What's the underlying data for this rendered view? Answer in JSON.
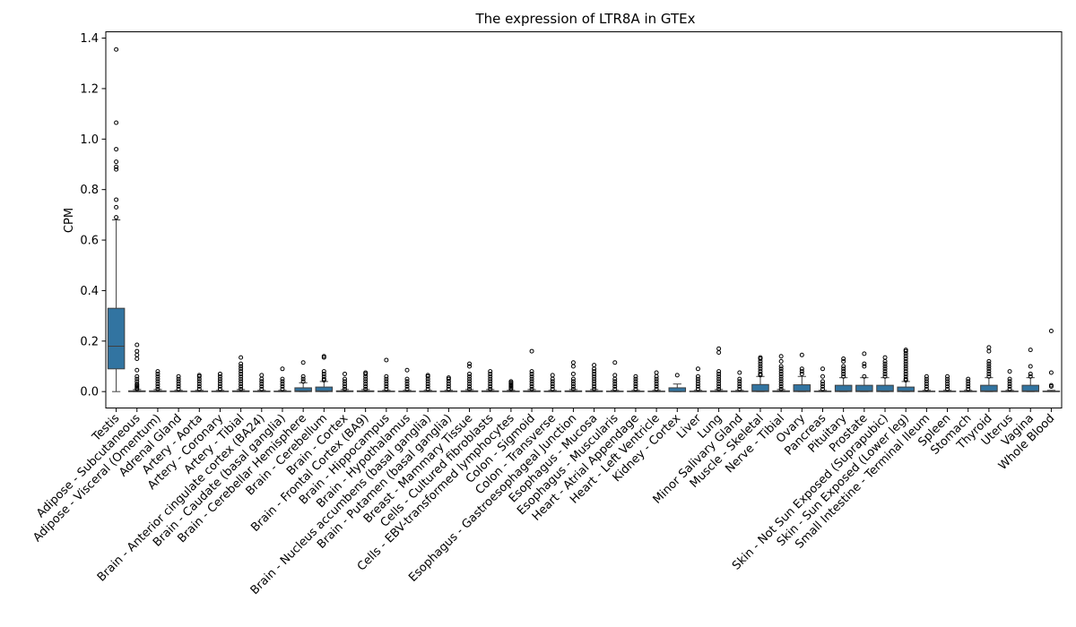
{
  "chart_data": {
    "type": "box",
    "title": "The expression of LTR8A in GTEx",
    "xlabel": "",
    "ylabel": "CPM",
    "ylim": [
      -0.065,
      1.425
    ],
    "yticks": [
      0.0,
      0.2,
      0.4,
      0.6,
      0.8,
      1.0,
      1.2,
      1.4
    ],
    "ytick_labels": [
      "0.0",
      "0.2",
      "0.4",
      "0.6",
      "0.8",
      "1.0",
      "1.2",
      "1.4"
    ],
    "grid": false,
    "legend": "none",
    "box_color": "#3274a1",
    "categories": [
      "Testis",
      "Adipose - Subcutaneous",
      "Adipose - Visceral (Omentum)",
      "Adrenal Gland",
      "Artery - Aorta",
      "Artery - Coronary",
      "Artery - Tibial",
      "Brain - Anterior cingulate cortex (BA24)",
      "Brain - Caudate (basal ganglia)",
      "Brain - Cerebellar Hemisphere",
      "Brain - Cerebellum",
      "Brain - Cortex",
      "Brain - Frontal Cortex (BA9)",
      "Brain - Hippocampus",
      "Brain - Hypothalamus",
      "Brain - Nucleus accumbens (basal ganglia)",
      "Brain - Putamen (basal ganglia)",
      "Breast - Mammary Tissue",
      "Cells - Cultured fibroblasts",
      "Cells - EBV-transformed lymphocytes",
      "Colon - Sigmoid",
      "Colon - Transverse",
      "Esophagus - Gastroesophageal Junction",
      "Esophagus - Mucosa",
      "Esophagus - Muscularis",
      "Heart - Atrial Appendage",
      "Heart - Left Ventricle",
      "Kidney - Cortex",
      "Liver",
      "Lung",
      "Minor Salivary Gland",
      "Muscle - Skeletal",
      "Nerve - Tibial",
      "Ovary",
      "Pancreas",
      "Pituitary",
      "Prostate",
      "Skin - Not Sun Exposed (Suprapubic)",
      "Skin - Sun Exposed (Lower leg)",
      "Small Intestine - Terminal Ileum",
      "Spleen",
      "Stomach",
      "Thyroid",
      "Uterus",
      "Vagina",
      "Whole Blood"
    ],
    "boxes": [
      {
        "q1": 0.09,
        "median": 0.18,
        "q3": 0.33,
        "whislo": 0.0,
        "whishi": 0.68,
        "fliers": [
          0.69,
          0.73,
          0.76,
          0.88,
          0.89,
          0.91,
          0.96,
          1.065,
          1.355
        ]
      },
      {
        "q1": 0.0,
        "median": 0.0,
        "q3": 0.003,
        "whislo": 0.0,
        "whishi": 0.008,
        "fliers": [
          0.01,
          0.015,
          0.02,
          0.025,
          0.03,
          0.04,
          0.05,
          0.06,
          0.085,
          0.13,
          0.145,
          0.16,
          0.185
        ]
      },
      {
        "q1": 0.0,
        "median": 0.0,
        "q3": 0.003,
        "whislo": 0.0,
        "whishi": 0.008,
        "fliers": [
          0.01,
          0.02,
          0.03,
          0.04,
          0.05,
          0.06,
          0.07,
          0.08
        ]
      },
      {
        "q1": 0.0,
        "median": 0.0,
        "q3": 0.002,
        "whislo": 0.0,
        "whishi": 0.005,
        "fliers": [
          0.01,
          0.02,
          0.03,
          0.04,
          0.05,
          0.06
        ]
      },
      {
        "q1": 0.0,
        "median": 0.0,
        "q3": 0.002,
        "whislo": 0.0,
        "whishi": 0.005,
        "fliers": [
          0.01,
          0.02,
          0.03,
          0.04,
          0.05,
          0.06,
          0.065
        ]
      },
      {
        "q1": 0.0,
        "median": 0.0,
        "q3": 0.002,
        "whislo": 0.0,
        "whishi": 0.005,
        "fliers": [
          0.01,
          0.02,
          0.03,
          0.04,
          0.05,
          0.06,
          0.07
        ]
      },
      {
        "q1": 0.0,
        "median": 0.0,
        "q3": 0.003,
        "whislo": 0.0,
        "whishi": 0.008,
        "fliers": [
          0.01,
          0.02,
          0.03,
          0.04,
          0.05,
          0.06,
          0.07,
          0.08,
          0.09,
          0.1,
          0.11,
          0.135
        ]
      },
      {
        "q1": 0.0,
        "median": 0.0,
        "q3": 0.002,
        "whislo": 0.0,
        "whishi": 0.005,
        "fliers": [
          0.01,
          0.02,
          0.03,
          0.04,
          0.05,
          0.065
        ]
      },
      {
        "q1": 0.0,
        "median": 0.0,
        "q3": 0.002,
        "whislo": 0.0,
        "whishi": 0.005,
        "fliers": [
          0.01,
          0.02,
          0.03,
          0.04,
          0.05,
          0.09
        ]
      },
      {
        "q1": 0.0,
        "median": 0.003,
        "q3": 0.015,
        "whislo": 0.0,
        "whishi": 0.035,
        "fliers": [
          0.04,
          0.05,
          0.06,
          0.115
        ]
      },
      {
        "q1": 0.0,
        "median": 0.003,
        "q3": 0.018,
        "whislo": 0.0,
        "whishi": 0.04,
        "fliers": [
          0.045,
          0.05,
          0.06,
          0.07,
          0.08,
          0.135,
          0.14
        ]
      },
      {
        "q1": 0.0,
        "median": 0.0,
        "q3": 0.003,
        "whislo": 0.0,
        "whishi": 0.008,
        "fliers": [
          0.01,
          0.02,
          0.03,
          0.04,
          0.05,
          0.07
        ]
      },
      {
        "q1": 0.0,
        "median": 0.0,
        "q3": 0.003,
        "whislo": 0.0,
        "whishi": 0.008,
        "fliers": [
          0.01,
          0.02,
          0.03,
          0.04,
          0.05,
          0.06,
          0.07,
          0.075
        ]
      },
      {
        "q1": 0.0,
        "median": 0.0,
        "q3": 0.002,
        "whislo": 0.0,
        "whishi": 0.005,
        "fliers": [
          0.01,
          0.02,
          0.03,
          0.04,
          0.05,
          0.06,
          0.125
        ]
      },
      {
        "q1": 0.0,
        "median": 0.0,
        "q3": 0.002,
        "whislo": 0.0,
        "whishi": 0.005,
        "fliers": [
          0.01,
          0.02,
          0.03,
          0.04,
          0.05,
          0.085
        ]
      },
      {
        "q1": 0.0,
        "median": 0.0,
        "q3": 0.002,
        "whislo": 0.0,
        "whishi": 0.005,
        "fliers": [
          0.01,
          0.02,
          0.03,
          0.04,
          0.05,
          0.06,
          0.065
        ]
      },
      {
        "q1": 0.0,
        "median": 0.0,
        "q3": 0.002,
        "whislo": 0.0,
        "whishi": 0.005,
        "fliers": [
          0.01,
          0.02,
          0.03,
          0.04,
          0.05,
          0.055
        ]
      },
      {
        "q1": 0.0,
        "median": 0.0,
        "q3": 0.003,
        "whislo": 0.0,
        "whishi": 0.008,
        "fliers": [
          0.01,
          0.02,
          0.03,
          0.04,
          0.05,
          0.06,
          0.07,
          0.1,
          0.11
        ]
      },
      {
        "q1": 0.0,
        "median": 0.0,
        "q3": 0.003,
        "whislo": 0.0,
        "whishi": 0.008,
        "fliers": [
          0.01,
          0.02,
          0.03,
          0.04,
          0.05,
          0.06,
          0.07,
          0.08
        ]
      },
      {
        "q1": 0.0,
        "median": 0.0,
        "q3": 0.002,
        "whislo": 0.0,
        "whishi": 0.005,
        "fliers": [
          0.01,
          0.015,
          0.02,
          0.025,
          0.03,
          0.035,
          0.04
        ]
      },
      {
        "q1": 0.0,
        "median": 0.0,
        "q3": 0.003,
        "whislo": 0.0,
        "whishi": 0.008,
        "fliers": [
          0.01,
          0.02,
          0.03,
          0.04,
          0.05,
          0.06,
          0.07,
          0.08,
          0.16
        ]
      },
      {
        "q1": 0.0,
        "median": 0.0,
        "q3": 0.002,
        "whislo": 0.0,
        "whishi": 0.005,
        "fliers": [
          0.01,
          0.02,
          0.03,
          0.04,
          0.05,
          0.065
        ]
      },
      {
        "q1": 0.0,
        "median": 0.0,
        "q3": 0.003,
        "whislo": 0.0,
        "whishi": 0.008,
        "fliers": [
          0.01,
          0.02,
          0.03,
          0.04,
          0.05,
          0.07,
          0.1,
          0.115
        ]
      },
      {
        "q1": 0.0,
        "median": 0.0,
        "q3": 0.003,
        "whislo": 0.0,
        "whishi": 0.008,
        "fliers": [
          0.01,
          0.02,
          0.03,
          0.04,
          0.05,
          0.06,
          0.07,
          0.08,
          0.09,
          0.105
        ]
      },
      {
        "q1": 0.0,
        "median": 0.0,
        "q3": 0.002,
        "whislo": 0.0,
        "whishi": 0.005,
        "fliers": [
          0.01,
          0.02,
          0.03,
          0.04,
          0.05,
          0.065,
          0.115
        ]
      },
      {
        "q1": 0.0,
        "median": 0.0,
        "q3": 0.002,
        "whislo": 0.0,
        "whishi": 0.005,
        "fliers": [
          0.01,
          0.02,
          0.03,
          0.04,
          0.05,
          0.06
        ]
      },
      {
        "q1": 0.0,
        "median": 0.0,
        "q3": 0.002,
        "whislo": 0.0,
        "whishi": 0.005,
        "fliers": [
          0.01,
          0.02,
          0.03,
          0.04,
          0.05,
          0.06,
          0.075
        ]
      },
      {
        "q1": 0.0,
        "median": 0.0,
        "q3": 0.015,
        "whislo": 0.0,
        "whishi": 0.03,
        "fliers": [
          0.065
        ]
      },
      {
        "q1": 0.0,
        "median": 0.0,
        "q3": 0.002,
        "whislo": 0.0,
        "whishi": 0.005,
        "fliers": [
          0.01,
          0.02,
          0.03,
          0.04,
          0.05,
          0.06,
          0.09
        ]
      },
      {
        "q1": 0.0,
        "median": 0.0,
        "q3": 0.003,
        "whislo": 0.0,
        "whishi": 0.008,
        "fliers": [
          0.01,
          0.02,
          0.03,
          0.04,
          0.05,
          0.06,
          0.07,
          0.08,
          0.155,
          0.17
        ]
      },
      {
        "q1": 0.0,
        "median": 0.0,
        "q3": 0.002,
        "whislo": 0.0,
        "whishi": 0.005,
        "fliers": [
          0.01,
          0.02,
          0.03,
          0.04,
          0.05,
          0.075
        ]
      },
      {
        "q1": 0.0,
        "median": 0.003,
        "q3": 0.028,
        "whislo": 0.0,
        "whishi": 0.06,
        "fliers": [
          0.065,
          0.07,
          0.08,
          0.09,
          0.1,
          0.11,
          0.12,
          0.13,
          0.135
        ]
      },
      {
        "q1": 0.0,
        "median": 0.0,
        "q3": 0.003,
        "whislo": 0.0,
        "whishi": 0.008,
        "fliers": [
          0.01,
          0.02,
          0.03,
          0.04,
          0.05,
          0.06,
          0.07,
          0.08,
          0.09,
          0.1,
          0.12,
          0.14
        ]
      },
      {
        "q1": 0.0,
        "median": 0.003,
        "q3": 0.027,
        "whislo": 0.0,
        "whishi": 0.06,
        "fliers": [
          0.07,
          0.08,
          0.09,
          0.145
        ]
      },
      {
        "q1": 0.0,
        "median": 0.0,
        "q3": 0.002,
        "whislo": 0.0,
        "whishi": 0.005,
        "fliers": [
          0.01,
          0.02,
          0.03,
          0.04,
          0.06,
          0.09
        ]
      },
      {
        "q1": 0.0,
        "median": 0.003,
        "q3": 0.025,
        "whislo": 0.0,
        "whishi": 0.055,
        "fliers": [
          0.06,
          0.07,
          0.08,
          0.09,
          0.1,
          0.12,
          0.13
        ]
      },
      {
        "q1": 0.0,
        "median": 0.003,
        "q3": 0.025,
        "whislo": 0.0,
        "whishi": 0.055,
        "fliers": [
          0.06,
          0.1,
          0.11,
          0.15
        ]
      },
      {
        "q1": 0.0,
        "median": 0.003,
        "q3": 0.025,
        "whislo": 0.0,
        "whishi": 0.055,
        "fliers": [
          0.06,
          0.07,
          0.08,
          0.09,
          0.1,
          0.11,
          0.12,
          0.135
        ]
      },
      {
        "q1": 0.0,
        "median": 0.003,
        "q3": 0.018,
        "whislo": 0.0,
        "whishi": 0.04,
        "fliers": [
          0.045,
          0.05,
          0.06,
          0.07,
          0.08,
          0.09,
          0.1,
          0.11,
          0.12,
          0.13,
          0.14,
          0.15,
          0.16,
          0.165
        ]
      },
      {
        "q1": 0.0,
        "median": 0.0,
        "q3": 0.002,
        "whislo": 0.0,
        "whishi": 0.005,
        "fliers": [
          0.01,
          0.02,
          0.03,
          0.04,
          0.05,
          0.06
        ]
      },
      {
        "q1": 0.0,
        "median": 0.0,
        "q3": 0.002,
        "whislo": 0.0,
        "whishi": 0.005,
        "fliers": [
          0.01,
          0.02,
          0.03,
          0.04,
          0.05,
          0.06
        ]
      },
      {
        "q1": 0.0,
        "median": 0.0,
        "q3": 0.002,
        "whislo": 0.0,
        "whishi": 0.005,
        "fliers": [
          0.01,
          0.02,
          0.03,
          0.04,
          0.05
        ]
      },
      {
        "q1": 0.0,
        "median": 0.003,
        "q3": 0.025,
        "whislo": 0.0,
        "whishi": 0.055,
        "fliers": [
          0.06,
          0.07,
          0.08,
          0.09,
          0.1,
          0.11,
          0.12,
          0.16,
          0.175
        ]
      },
      {
        "q1": 0.0,
        "median": 0.0,
        "q3": 0.002,
        "whislo": 0.0,
        "whishi": 0.005,
        "fliers": [
          0.01,
          0.02,
          0.03,
          0.04,
          0.05,
          0.08
        ]
      },
      {
        "q1": 0.0,
        "median": 0.003,
        "q3": 0.025,
        "whislo": 0.0,
        "whishi": 0.055,
        "fliers": [
          0.06,
          0.07,
          0.1,
          0.165
        ]
      },
      {
        "q1": 0.0,
        "median": 0.0,
        "q3": 0.002,
        "whislo": 0.0,
        "whishi": 0.005,
        "fliers": [
          0.02,
          0.025,
          0.075,
          0.24
        ]
      }
    ]
  }
}
